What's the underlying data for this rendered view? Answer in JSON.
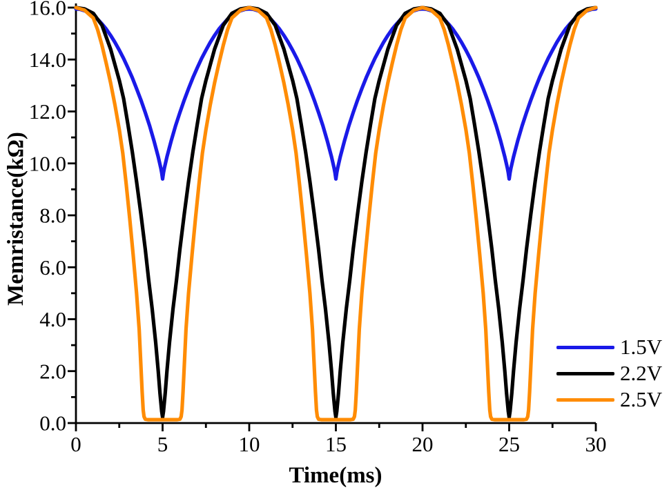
{
  "chart_data": {
    "type": "line",
    "title": "",
    "xlabel": "Time(ms)",
    "ylabel": "Memristance(kΩ)",
    "x_unit": "ms",
    "y_unit": "kΩ",
    "xlim": [
      0,
      30
    ],
    "ylim": [
      0,
      16
    ],
    "grid": false,
    "legend_position": "bottom-right",
    "x_ticks": {
      "major": [
        {
          "value": 0,
          "label": "0"
        },
        {
          "value": 5,
          "label": "5"
        },
        {
          "value": 10,
          "label": "10"
        },
        {
          "value": 15,
          "label": "15"
        },
        {
          "value": 20,
          "label": "20"
        },
        {
          "value": 25,
          "label": "25"
        },
        {
          "value": 30,
          "label": "30"
        }
      ],
      "minor": [
        2.5,
        7.5,
        12.5,
        17.5,
        22.5,
        27.5
      ]
    },
    "y_ticks": {
      "major": [
        {
          "value": 0,
          "label": "0.0"
        },
        {
          "value": 2,
          "label": "2.0"
        },
        {
          "value": 4,
          "label": "4.0"
        },
        {
          "value": 6,
          "label": "6.0"
        },
        {
          "value": 8,
          "label": "8.0"
        },
        {
          "value": 10,
          "label": "10.0"
        },
        {
          "value": 12,
          "label": "12.0"
        },
        {
          "value": 14,
          "label": "14.0"
        },
        {
          "value": 16,
          "label": "16.0"
        }
      ],
      "minor": [
        1,
        3,
        5,
        7,
        9,
        11,
        13,
        15
      ]
    },
    "period_ms": 10,
    "periods_shown": 3,
    "series": [
      {
        "name": "1.5V",
        "color": "#1a1ae8",
        "max_kohm": 15.95,
        "min_kohm": 9.4,
        "points_one_period": [
          [
            0,
            15.95
          ],
          [
            0.25,
            15.93
          ],
          [
            0.5,
            15.88
          ],
          [
            0.75,
            15.8
          ],
          [
            1,
            15.69
          ],
          [
            1.25,
            15.55
          ],
          [
            1.5,
            15.37
          ],
          [
            1.75,
            15.17
          ],
          [
            2,
            14.93
          ],
          [
            2.25,
            14.66
          ],
          [
            2.5,
            14.36
          ],
          [
            2.75,
            14.04
          ],
          [
            3,
            13.68
          ],
          [
            3.25,
            13.3
          ],
          [
            3.5,
            12.88
          ],
          [
            3.75,
            12.44
          ],
          [
            4,
            11.96
          ],
          [
            4.25,
            11.45
          ],
          [
            4.5,
            10.88
          ],
          [
            4.75,
            10.25
          ],
          [
            4.9,
            9.81
          ],
          [
            4.95,
            9.64
          ],
          [
            5,
            9.4
          ],
          [
            5.05,
            9.64
          ],
          [
            5.1,
            9.81
          ],
          [
            5.25,
            10.25
          ],
          [
            5.5,
            10.88
          ],
          [
            5.75,
            11.45
          ],
          [
            6,
            11.96
          ],
          [
            6.25,
            12.44
          ],
          [
            6.5,
            12.88
          ],
          [
            6.75,
            13.3
          ],
          [
            7,
            13.68
          ],
          [
            7.25,
            14.04
          ],
          [
            7.5,
            14.36
          ],
          [
            7.75,
            14.66
          ],
          [
            8,
            14.93
          ],
          [
            8.25,
            15.17
          ],
          [
            8.5,
            15.37
          ],
          [
            8.75,
            15.55
          ],
          [
            9,
            15.69
          ],
          [
            9.25,
            15.8
          ],
          [
            9.5,
            15.88
          ],
          [
            9.75,
            15.93
          ]
        ]
      },
      {
        "name": "2.2V",
        "color": "#000000",
        "max_kohm": 16.0,
        "min_kohm": 0.22,
        "points_one_period": [
          [
            0,
            16
          ],
          [
            0.5,
            15.95
          ],
          [
            1,
            15.78
          ],
          [
            1.5,
            15.32
          ],
          [
            2,
            14.4
          ],
          [
            2.5,
            13.2
          ],
          [
            2.75,
            12.5
          ],
          [
            3,
            11.5
          ],
          [
            3.25,
            10.45
          ],
          [
            3.5,
            9.3
          ],
          [
            3.75,
            8.05
          ],
          [
            4,
            6.7
          ],
          [
            4.2,
            5.5
          ],
          [
            4.4,
            4.4
          ],
          [
            4.6,
            3.1
          ],
          [
            4.75,
            2.0
          ],
          [
            4.85,
            1.15
          ],
          [
            4.95,
            0.45
          ],
          [
            5,
            0.22
          ],
          [
            5.05,
            0.45
          ],
          [
            5.15,
            1.15
          ],
          [
            5.25,
            2.0
          ],
          [
            5.4,
            3.1
          ],
          [
            5.6,
            4.4
          ],
          [
            5.8,
            5.5
          ],
          [
            6,
            6.7
          ],
          [
            6.25,
            8.05
          ],
          [
            6.5,
            9.3
          ],
          [
            6.75,
            10.45
          ],
          [
            7,
            11.5
          ],
          [
            7.25,
            12.5
          ],
          [
            7.5,
            13.2
          ],
          [
            8,
            14.4
          ],
          [
            8.5,
            15.32
          ],
          [
            9,
            15.78
          ],
          [
            9.5,
            15.95
          ]
        ]
      },
      {
        "name": "2.5V",
        "color": "#ff8c05",
        "max_kohm": 16.0,
        "min_kohm": 0.13,
        "points_one_period": [
          [
            0,
            16
          ],
          [
            0.5,
            15.9
          ],
          [
            1,
            15.6
          ],
          [
            1.25,
            15.15
          ],
          [
            1.5,
            14.55
          ],
          [
            1.75,
            13.85
          ],
          [
            2,
            13.1
          ],
          [
            2.25,
            12.25
          ],
          [
            2.5,
            11.3
          ],
          [
            2.7,
            10.4
          ],
          [
            2.9,
            9.2
          ],
          [
            3.1,
            7.9
          ],
          [
            3.3,
            6.5
          ],
          [
            3.5,
            5.0
          ],
          [
            3.65,
            3.6
          ],
          [
            3.75,
            2.2
          ],
          [
            3.82,
            1.2
          ],
          [
            3.88,
            0.5
          ],
          [
            3.93,
            0.25
          ],
          [
            4,
            0.15
          ],
          [
            4.15,
            0.13
          ],
          [
            5,
            0.13
          ],
          [
            5.85,
            0.13
          ],
          [
            6,
            0.15
          ],
          [
            6.07,
            0.25
          ],
          [
            6.12,
            0.5
          ],
          [
            6.18,
            1.2
          ],
          [
            6.25,
            2.2
          ],
          [
            6.35,
            3.6
          ],
          [
            6.5,
            5.0
          ],
          [
            6.7,
            6.5
          ],
          [
            6.9,
            7.9
          ],
          [
            7.1,
            9.2
          ],
          [
            7.3,
            10.4
          ],
          [
            7.5,
            11.3
          ],
          [
            7.75,
            12.25
          ],
          [
            8,
            13.1
          ],
          [
            8.25,
            13.85
          ],
          [
            8.5,
            14.55
          ],
          [
            8.75,
            15.15
          ],
          [
            9,
            15.6
          ],
          [
            9.5,
            15.9
          ]
        ]
      }
    ]
  },
  "legend": {
    "entries": [
      {
        "label": "1.5V"
      },
      {
        "label": "2.2V"
      },
      {
        "label": "2.5V"
      }
    ]
  }
}
